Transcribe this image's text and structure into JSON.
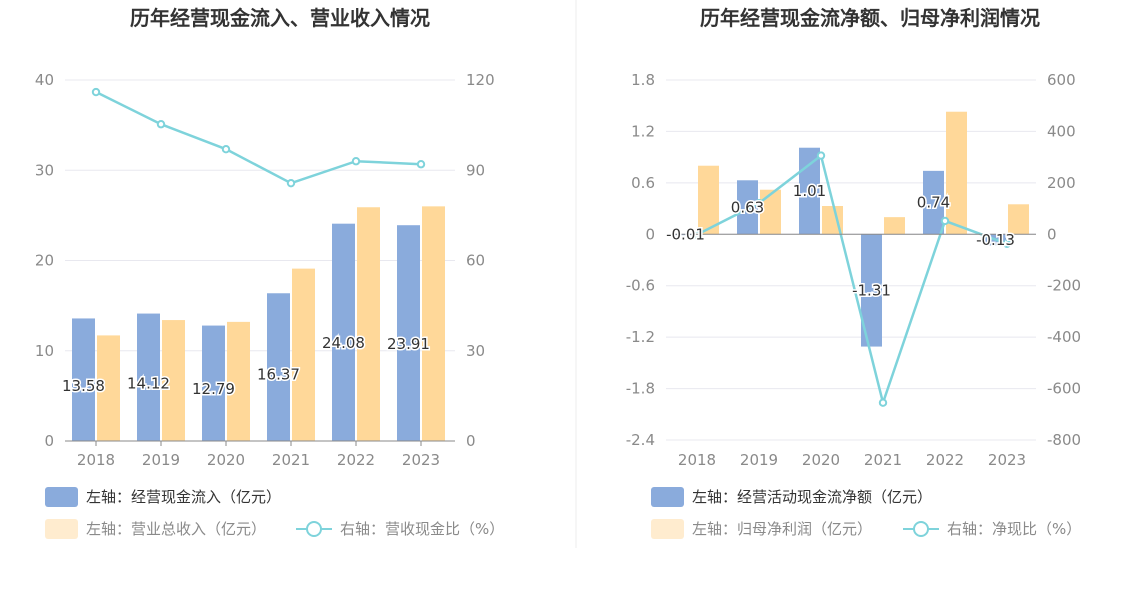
{
  "colors": {
    "bar_primary": "#8aabdc",
    "bar_secondary": "#ffd899",
    "bar_secondary_legend": "#ffeccf",
    "line": "#7ed3db",
    "axis": "#8a8a8a",
    "grid": "#e8e8ef",
    "divider": "#eeeeee"
  },
  "chart_data": [
    {
      "type": "bar",
      "title": "历年经营现金流入、营业收入情况",
      "categories": [
        "2018",
        "2019",
        "2020",
        "2021",
        "2022",
        "2023"
      ],
      "left_axis": {
        "ylim": [
          0,
          40
        ],
        "ticks": [
          "0",
          "10",
          "20",
          "30",
          "40"
        ]
      },
      "right_axis": {
        "ylim": [
          0,
          120
        ],
        "ticks": [
          "0",
          "30",
          "60",
          "90",
          "120"
        ]
      },
      "series": [
        {
          "name": "左轴：经营现金流入（亿元）",
          "kind": "bar",
          "axis": "left",
          "values": [
            13.58,
            14.12,
            12.79,
            16.37,
            24.08,
            23.91
          ],
          "labels": [
            "13.58",
            "14.12",
            "12.79",
            "16.37",
            "24.08",
            "23.91"
          ]
        },
        {
          "name": "左轴：营业总收入（亿元）",
          "kind": "bar",
          "axis": "left",
          "values": [
            11.7,
            13.4,
            13.2,
            19.1,
            25.9,
            26.0
          ]
        },
        {
          "name": "右轴：营收现金比（%）",
          "kind": "line",
          "axis": "right",
          "values": [
            116.0,
            105.3,
            97.0,
            85.7,
            93.0,
            92.0
          ]
        }
      ],
      "grid": true,
      "legend_placement": "bottom-left"
    },
    {
      "type": "bar",
      "title": "历年经营现金流净额、归母净利润情况",
      "categories": [
        "2018",
        "2019",
        "2020",
        "2021",
        "2022",
        "2023"
      ],
      "left_axis": {
        "ylim": [
          -2.4,
          1.8
        ],
        "ticks": [
          "1.8",
          "1.2",
          "0.6",
          "0",
          "-0.6",
          "-1.2",
          "-1.8",
          "-2.4"
        ]
      },
      "right_axis": {
        "ylim": [
          -800,
          600
        ],
        "ticks": [
          "600",
          "400",
          "200",
          "0",
          "-200",
          "-400",
          "-600",
          "-800"
        ]
      },
      "series": [
        {
          "name": "左轴：经营活动现金流净额（亿元）",
          "kind": "bar",
          "axis": "left",
          "values": [
            -0.01,
            0.63,
            1.01,
            -1.31,
            0.74,
            -0.13
          ],
          "labels": [
            "-0.01",
            "0.63",
            "1.01",
            "-1.31",
            "0.74",
            "-0.13"
          ]
        },
        {
          "name": "左轴：归母净利润（亿元）",
          "kind": "bar",
          "axis": "left",
          "values": [
            0.8,
            0.52,
            0.33,
            0.2,
            1.43,
            0.35
          ]
        },
        {
          "name": "右轴：净现比（%）",
          "kind": "line",
          "axis": "right",
          "values": [
            -1.3,
            121,
            306,
            -655,
            52,
            -37
          ]
        }
      ],
      "grid": true,
      "legend_placement": "bottom-left"
    }
  ]
}
